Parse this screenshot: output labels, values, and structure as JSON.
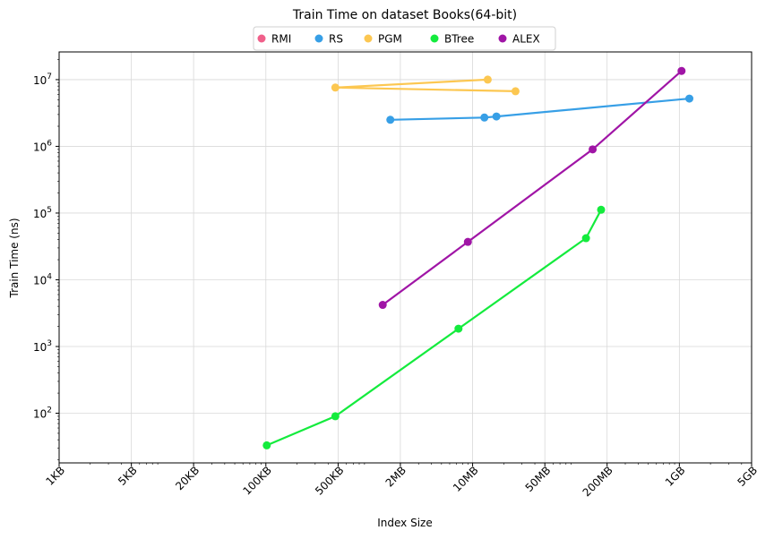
{
  "chart_data": {
    "type": "line",
    "title": "Train Time on dataset Books(64-bit)",
    "xlabel": "Index Size",
    "ylabel": "Train Time (ns)",
    "x_scale": "log",
    "y_scale": "log",
    "xlim_bytes": [
      1000,
      5000000000
    ],
    "ylim_ns": [
      18,
      26000000
    ],
    "grid": true,
    "legend_placement": "top-center",
    "x_ticks": [
      {
        "value": 1000,
        "label": "1KB"
      },
      {
        "value": 5000,
        "label": "5KB"
      },
      {
        "value": 20000,
        "label": "20KB"
      },
      {
        "value": 100000,
        "label": "100KB"
      },
      {
        "value": 500000,
        "label": "500KB"
      },
      {
        "value": 2000000,
        "label": "2MB"
      },
      {
        "value": 10000000,
        "label": "10MB"
      },
      {
        "value": 50000000,
        "label": "50MB"
      },
      {
        "value": 200000000,
        "label": "200MB"
      },
      {
        "value": 1000000000,
        "label": "1GB"
      },
      {
        "value": 5000000000,
        "label": "5GB"
      }
    ],
    "y_ticks": [
      {
        "value": 100,
        "base": "10",
        "exp": "2"
      },
      {
        "value": 1000,
        "base": "10",
        "exp": "3"
      },
      {
        "value": 10000,
        "base": "10",
        "exp": "4"
      },
      {
        "value": 100000,
        "base": "10",
        "exp": "5"
      },
      {
        "value": 1000000,
        "base": "10",
        "exp": "6"
      },
      {
        "value": 10000000,
        "base": "10",
        "exp": "7"
      }
    ],
    "series": [
      {
        "name": "RMI",
        "color": "#f0608a",
        "x": [],
        "y": []
      },
      {
        "name": "RS",
        "color": "#379fe6",
        "x": [
          1600000,
          13000000,
          17000000,
          1250000000
        ],
        "y": [
          2500000,
          2700000,
          2800000,
          5200000
        ]
      },
      {
        "name": "PGM",
        "color": "#fcc751",
        "x": [
          26000000,
          470000,
          14000000
        ],
        "y": [
          6700000,
          7600000,
          10000000
        ]
      },
      {
        "name": "BTree",
        "color": "#14eb3d",
        "x": [
          102000,
          470000,
          7300000,
          125000000,
          175000000
        ],
        "y": [
          33,
          90,
          1850,
          42000,
          112000
        ]
      },
      {
        "name": "ALEX",
        "color": "#a015a6",
        "x": [
          1350000,
          9000000,
          145000000,
          1050000000
        ],
        "y": [
          4200,
          37000,
          900000,
          13500000
        ]
      }
    ]
  }
}
